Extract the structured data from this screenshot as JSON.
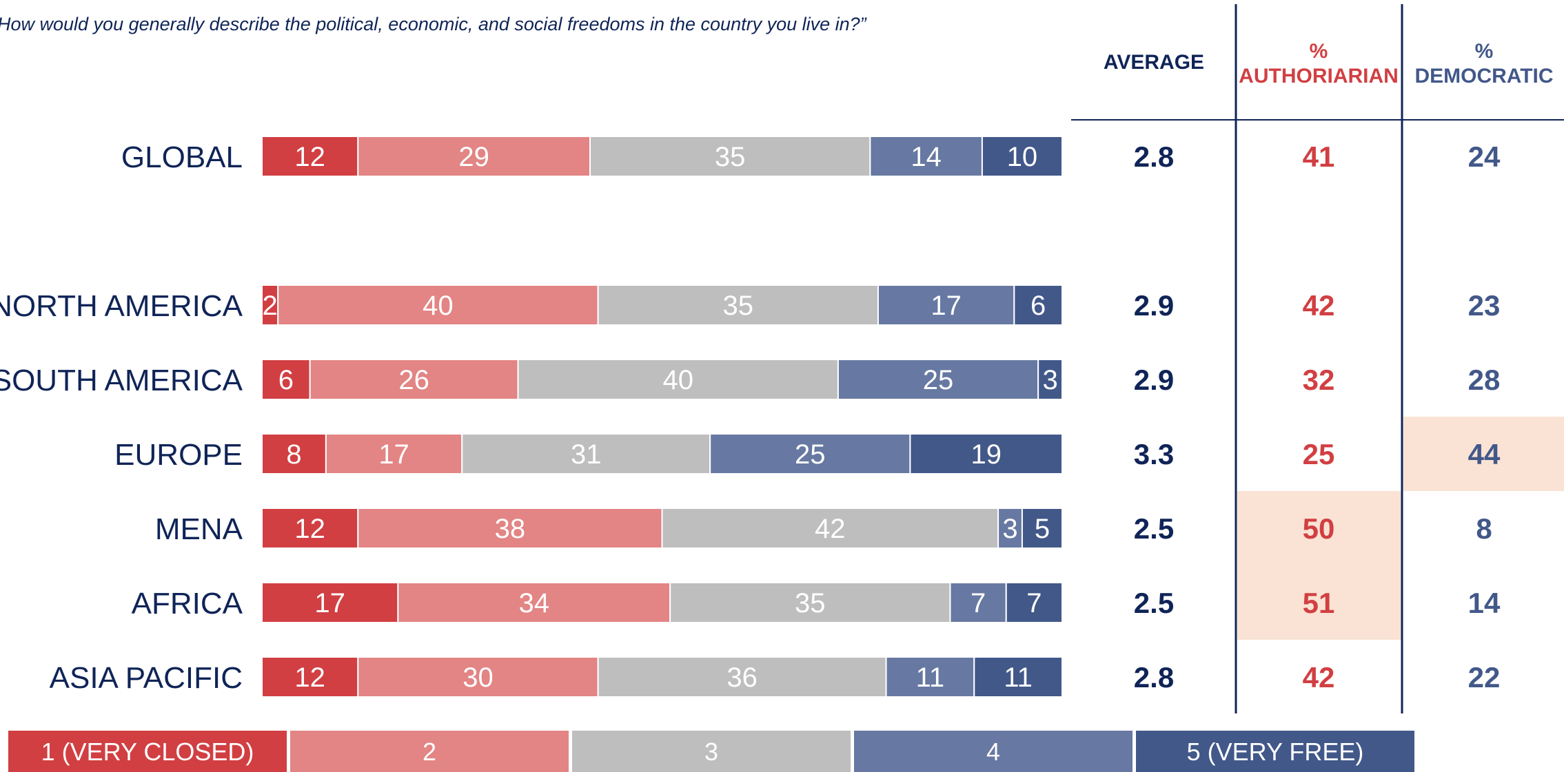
{
  "question": "How would you generally describe the political, economic, and social freedoms in the country you live in?”",
  "colors": {
    "very_closed": "#d13f42",
    "closed": "#e28584",
    "neutral": "#bebebe",
    "free": "#6779a2",
    "very_free": "#425889",
    "navy": "#0f2457",
    "auth_red": "#d13f42",
    "dem_blue": "#425889",
    "highlight": "#fae3d4"
  },
  "columns": {
    "average": "AVERAGE",
    "authoritarian_pct": "%",
    "authoritarian": "AUTHORIARIAN",
    "democratic_pct": "%",
    "democratic": "DEMOCRATIC"
  },
  "chart_data": {
    "type": "bar",
    "orientation": "horizontal",
    "stacked": true,
    "categories": [
      "GLOBAL",
      "NORTH AMERICA",
      "SOUTH AMERICA",
      "EUROPE",
      "MENA",
      "AFRICA",
      "ASIA PACIFIC"
    ],
    "series": [
      {
        "name": "1 (VERY CLOSED)",
        "values": [
          12,
          2,
          6,
          8,
          12,
          17,
          12
        ]
      },
      {
        "name": "2",
        "values": [
          29,
          40,
          26,
          17,
          38,
          34,
          30
        ]
      },
      {
        "name": "3",
        "values": [
          35,
          35,
          40,
          31,
          42,
          35,
          36
        ]
      },
      {
        "name": "4",
        "values": [
          14,
          17,
          25,
          25,
          3,
          7,
          11
        ]
      },
      {
        "name": "5 (VERY FREE)",
        "values": [
          10,
          6,
          3,
          19,
          5,
          7,
          11
        ]
      }
    ],
    "legend_position": "bottom"
  },
  "table": {
    "average": [
      "2.8",
      "2.9",
      "2.9",
      "3.3",
      "2.5",
      "2.5",
      "2.8"
    ],
    "authoritarian": [
      "41",
      "42",
      "32",
      "25",
      "50",
      "51",
      "42"
    ],
    "democratic": [
      "24",
      "23",
      "28",
      "44",
      "8",
      "14",
      "22"
    ],
    "highlight_authoritarian": [
      "MENA",
      "AFRICA"
    ],
    "highlight_democratic": [
      "EUROPE"
    ]
  }
}
